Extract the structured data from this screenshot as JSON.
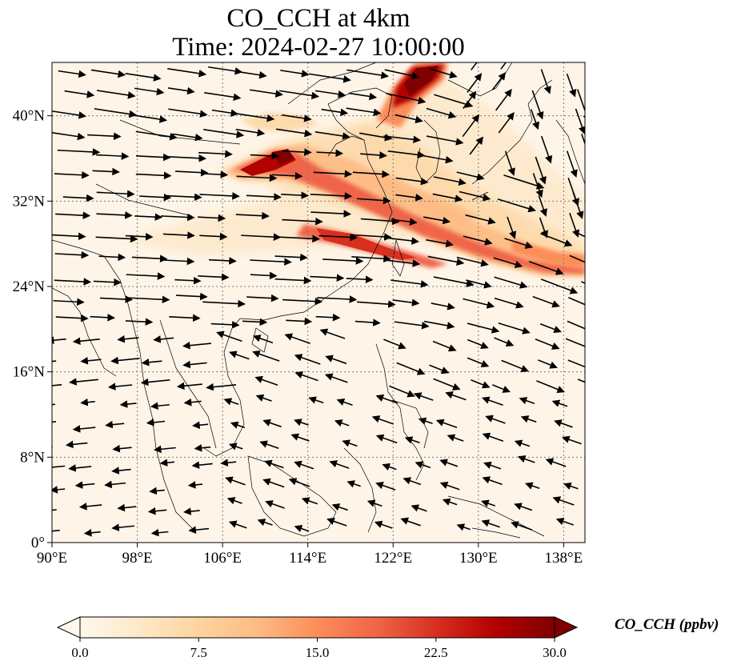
{
  "title_line1": "CO_CCH at 4km",
  "title_line2": "Time: 2024-02-27 10:00:00",
  "map": {
    "lon_range": [
      90,
      140
    ],
    "lat_range": [
      0,
      45
    ],
    "lat_ticks": [
      {
        "value": 40,
        "label": "40°N"
      },
      {
        "value": 32,
        "label": "32°N"
      },
      {
        "value": 24,
        "label": "24°N"
      },
      {
        "value": 16,
        "label": "16°N"
      },
      {
        "value": 8,
        "label": "8°N"
      },
      {
        "value": 0,
        "label": "0°"
      }
    ],
    "lon_ticks": [
      {
        "value": 90,
        "label": "90°E"
      },
      {
        "value": 98,
        "label": "98°E"
      },
      {
        "value": 106,
        "label": "106°E"
      },
      {
        "value": 114,
        "label": "114°E"
      },
      {
        "value": 122,
        "label": "122°E"
      },
      {
        "value": 130,
        "label": "130°E"
      },
      {
        "value": 138,
        "label": "138°E"
      }
    ],
    "gridlines": true
  },
  "colorbar": {
    "label": "CO_CCH (ppbv)",
    "ticks": [
      "0.0",
      "7.5",
      "15.0",
      "22.5",
      "30.0"
    ],
    "range": [
      0,
      30
    ],
    "extend": "both",
    "colormap": "OrRd",
    "colors": [
      "#fff7ec",
      "#fee8c8",
      "#fdd49e",
      "#fdbb84",
      "#fc8d59",
      "#ef6548",
      "#d7301f",
      "#b30000",
      "#7f0000"
    ]
  }
}
